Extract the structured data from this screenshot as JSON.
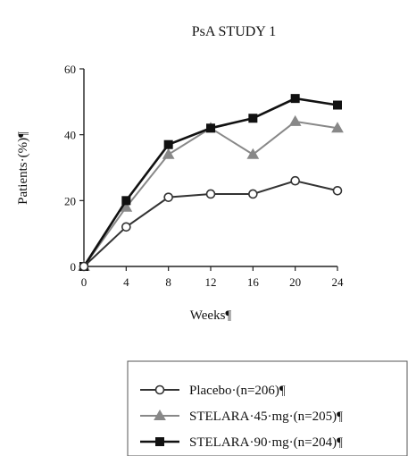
{
  "chart_data": {
    "type": "line",
    "title": "PsA STUDY 1",
    "xlabel": "Weeks¶",
    "ylabel": "Patients·(%)¶",
    "x": [
      0,
      4,
      8,
      12,
      16,
      20,
      24
    ],
    "x_ticks": [
      "0",
      "4",
      "8",
      "12",
      "16",
      "20",
      "24"
    ],
    "y_ticks": [
      "0",
      "20",
      "40",
      "60"
    ],
    "xlim": [
      0,
      24
    ],
    "ylim": [
      0,
      60
    ],
    "grid": false,
    "legend_position": "bottom-right",
    "series": [
      {
        "name": "Placebo·(n=206)¶",
        "values": [
          0,
          12,
          21,
          22,
          22,
          26,
          23
        ],
        "color": "#333333",
        "marker": "circle-open"
      },
      {
        "name": "STELARA·45·mg·(n=205)¶",
        "values": [
          0,
          18,
          34,
          42,
          34,
          44,
          42
        ],
        "color": "#888888",
        "marker": "triangle"
      },
      {
        "name": "STELARA·90·mg·(n=204)¶",
        "values": [
          0,
          20,
          37,
          42,
          45,
          51,
          49
        ],
        "color": "#111111",
        "marker": "square"
      }
    ]
  }
}
